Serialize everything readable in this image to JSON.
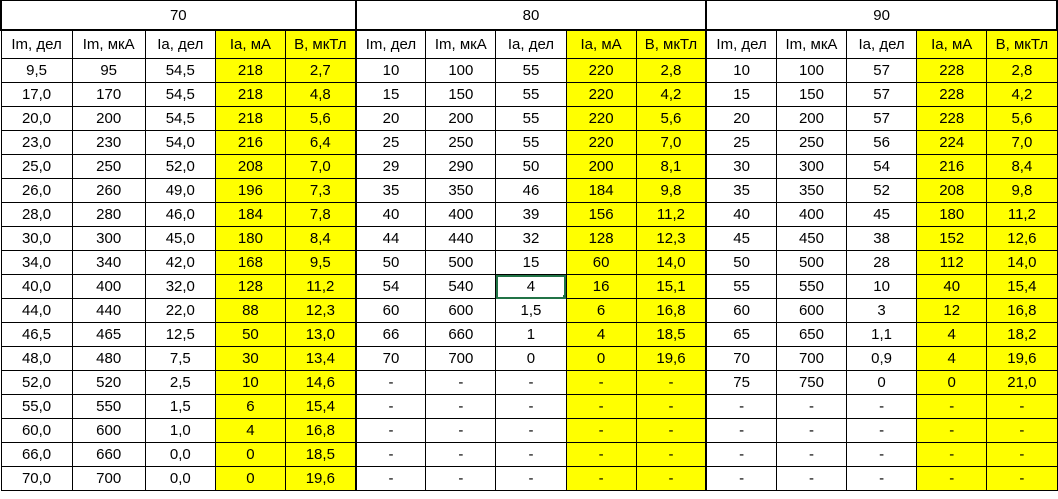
{
  "groups": [
    "70",
    "80",
    "90"
  ],
  "headers": [
    "Im, дел",
    "Im, мкА",
    "Ia, дел",
    "Ia, мА",
    "B, мкТл"
  ],
  "rows": [
    [
      "9,5",
      "95",
      "54,5",
      "218",
      "2,7",
      "10",
      "100",
      "55",
      "220",
      "2,8",
      "10",
      "100",
      "57",
      "228",
      "2,8"
    ],
    [
      "17,0",
      "170",
      "54,5",
      "218",
      "4,8",
      "15",
      "150",
      "55",
      "220",
      "4,2",
      "15",
      "150",
      "57",
      "228",
      "4,2"
    ],
    [
      "20,0",
      "200",
      "54,5",
      "218",
      "5,6",
      "20",
      "200",
      "55",
      "220",
      "5,6",
      "20",
      "200",
      "57",
      "228",
      "5,6"
    ],
    [
      "23,0",
      "230",
      "54,0",
      "216",
      "6,4",
      "25",
      "250",
      "55",
      "220",
      "7,0",
      "25",
      "250",
      "56",
      "224",
      "7,0"
    ],
    [
      "25,0",
      "250",
      "52,0",
      "208",
      "7,0",
      "29",
      "290",
      "50",
      "200",
      "8,1",
      "30",
      "300",
      "54",
      "216",
      "8,4"
    ],
    [
      "26,0",
      "260",
      "49,0",
      "196",
      "7,3",
      "35",
      "350",
      "46",
      "184",
      "9,8",
      "35",
      "350",
      "52",
      "208",
      "9,8"
    ],
    [
      "28,0",
      "280",
      "46,0",
      "184",
      "7,8",
      "40",
      "400",
      "39",
      "156",
      "11,2",
      "40",
      "400",
      "45",
      "180",
      "11,2"
    ],
    [
      "30,0",
      "300",
      "45,0",
      "180",
      "8,4",
      "44",
      "440",
      "32",
      "128",
      "12,3",
      "45",
      "450",
      "38",
      "152",
      "12,6"
    ],
    [
      "34,0",
      "340",
      "42,0",
      "168",
      "9,5",
      "50",
      "500",
      "15",
      "60",
      "14,0",
      "50",
      "500",
      "28",
      "112",
      "14,0"
    ],
    [
      "40,0",
      "400",
      "32,0",
      "128",
      "11,2",
      "54",
      "540",
      "4",
      "16",
      "15,1",
      "55",
      "550",
      "10",
      "40",
      "15,4"
    ],
    [
      "44,0",
      "440",
      "22,0",
      "88",
      "12,3",
      "60",
      "600",
      "1,5",
      "6",
      "16,8",
      "60",
      "600",
      "3",
      "12",
      "16,8"
    ],
    [
      "46,5",
      "465",
      "12,5",
      "50",
      "13,0",
      "66",
      "660",
      "1",
      "4",
      "18,5",
      "65",
      "650",
      "1,1",
      "4",
      "18,2"
    ],
    [
      "48,0",
      "480",
      "7,5",
      "30",
      "13,4",
      "70",
      "700",
      "0",
      "0",
      "19,6",
      "70",
      "700",
      "0,9",
      "4",
      "19,6"
    ],
    [
      "52,0",
      "520",
      "2,5",
      "10",
      "14,6",
      "-",
      "-",
      "-",
      "-",
      "-",
      "75",
      "750",
      "0",
      "0",
      "21,0"
    ],
    [
      "55,0",
      "550",
      "1,5",
      "6",
      "15,4",
      "-",
      "-",
      "-",
      "-",
      "-",
      "-",
      "-",
      "-",
      "-",
      "-"
    ],
    [
      "60,0",
      "600",
      "1,0",
      "4",
      "16,8",
      "-",
      "-",
      "-",
      "-",
      "-",
      "-",
      "-",
      "-",
      "-",
      "-"
    ],
    [
      "66,0",
      "660",
      "0,0",
      "0",
      "18,5",
      "-",
      "-",
      "-",
      "-",
      "-",
      "-",
      "-",
      "-",
      "-",
      "-"
    ],
    [
      "70,0",
      "700",
      "0,0",
      "0",
      "19,6",
      "-",
      "-",
      "-",
      "-",
      "-",
      "-",
      "-",
      "-",
      "-",
      "-"
    ]
  ],
  "highlight_color": "#ffff00",
  "selection_color": "#217346"
}
